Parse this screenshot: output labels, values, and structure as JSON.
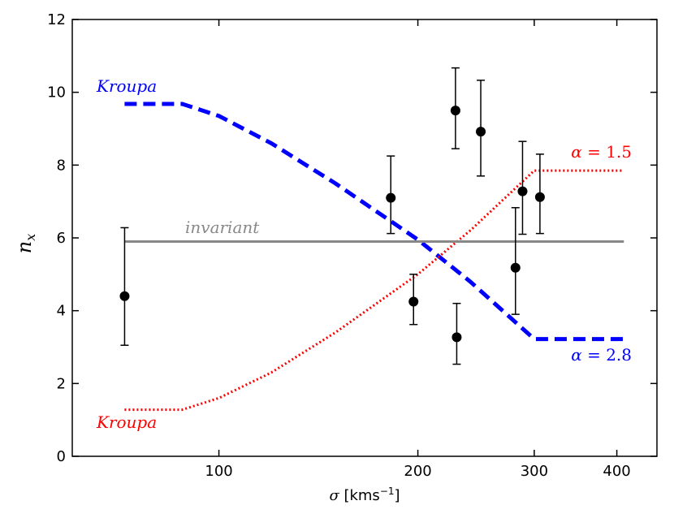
{
  "chart_data": {
    "type": "line",
    "xscale": "log",
    "xlim": [
      60,
      460
    ],
    "ylim": [
      0,
      12
    ],
    "xticks": [
      {
        "value": 100,
        "label": "100"
      },
      {
        "value": 200,
        "label": "200"
      },
      {
        "value": 300,
        "label": "300"
      },
      {
        "value": 400,
        "label": "400"
      }
    ],
    "yticks": [
      {
        "value": 0,
        "label": "0"
      },
      {
        "value": 2,
        "label": "2"
      },
      {
        "value": 4,
        "label": "4"
      },
      {
        "value": 6,
        "label": "6"
      },
      {
        "value": 8,
        "label": "8"
      },
      {
        "value": 10,
        "label": "10"
      },
      {
        "value": 12,
        "label": "12"
      }
    ],
    "xlabel": {
      "symbol": "σ",
      "text": " [kms",
      "exp": "−1",
      "close": "]"
    },
    "ylabel": {
      "symbol": "n",
      "sub": "x"
    },
    "series": [
      {
        "name": "Kroupa (blue)",
        "color": "#0000ff",
        "style": "dashed",
        "x": [
          72,
          88,
          100,
          120,
          150,
          200,
          240,
          300,
          410
        ],
        "y": [
          9.68,
          9.68,
          9.35,
          8.6,
          7.5,
          5.95,
          4.8,
          3.22,
          3.22
        ]
      },
      {
        "name": "Kroupa (red)",
        "color": "#ff0000",
        "style": "dotted",
        "x": [
          72,
          88,
          100,
          120,
          150,
          200,
          240,
          300,
          410
        ],
        "y": [
          1.28,
          1.28,
          1.6,
          2.3,
          3.4,
          5.0,
          6.2,
          7.85,
          7.85
        ]
      },
      {
        "name": "invariant",
        "color": "#888888",
        "style": "solid",
        "x": [
          72,
          410
        ],
        "y": [
          5.9,
          5.9
        ]
      }
    ],
    "points": [
      {
        "x": 72,
        "y": 4.4,
        "lo": 3.05,
        "hi": 6.28
      },
      {
        "x": 182,
        "y": 7.1,
        "lo": 6.12,
        "hi": 8.25
      },
      {
        "x": 197,
        "y": 4.25,
        "lo": 3.62,
        "hi": 5.0
      },
      {
        "x": 228,
        "y": 9.5,
        "lo": 8.45,
        "hi": 10.67
      },
      {
        "x": 229,
        "y": 3.27,
        "lo": 2.53,
        "hi": 4.2
      },
      {
        "x": 249,
        "y": 8.92,
        "lo": 7.7,
        "hi": 10.33
      },
      {
        "x": 281,
        "y": 5.18,
        "lo": 3.9,
        "hi": 6.83
      },
      {
        "x": 288,
        "y": 7.28,
        "lo": 6.1,
        "hi": 8.65
      },
      {
        "x": 306,
        "y": 7.12,
        "lo": 6.12,
        "hi": 8.3
      }
    ],
    "annotations": [
      {
        "key": "kroupa_blue",
        "symbol": "",
        "text": "Kroupa",
        "color": "#0000ff"
      },
      {
        "key": "kroupa_red",
        "symbol": "",
        "text": "Kroupa",
        "color": "#ff0000"
      },
      {
        "key": "invariant",
        "symbol": "",
        "text": "invariant",
        "color": "#888888"
      },
      {
        "key": "alpha_15",
        "symbol": "α",
        "text": " = 1.5",
        "color": "#ff0000"
      },
      {
        "key": "alpha_28",
        "symbol": "α",
        "text": " = 2.8",
        "color": "#0000ff"
      }
    ]
  }
}
